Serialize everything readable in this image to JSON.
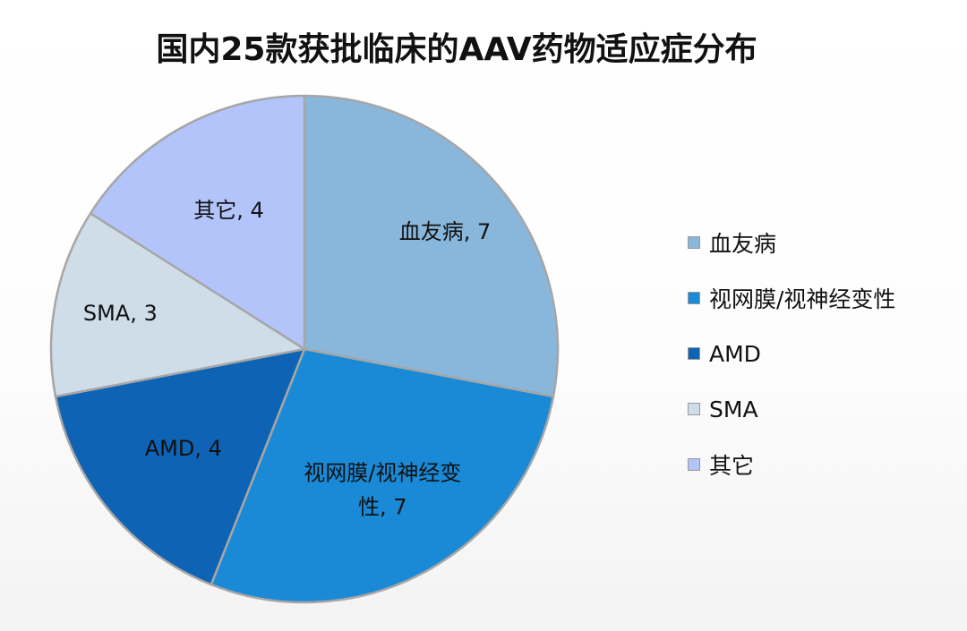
{
  "title": "国内25款获批临床的AAV药物适应症分布",
  "chart_data": {
    "type": "pie",
    "title": "国内25款获批临床的AAV药物适应症分布",
    "slices": [
      {
        "label": "血友病",
        "value": 7,
        "color": "#89b6db",
        "data_label": [
          "血友病, 7"
        ]
      },
      {
        "label": "视网膜/视神经变性",
        "value": 7,
        "color": "#1a8ad6",
        "data_label": [
          "视网膜/视神经变",
          "性, 7"
        ]
      },
      {
        "label": "AMD",
        "value": 4,
        "color": "#0f63b5",
        "data_label": [
          "AMD, 4"
        ]
      },
      {
        "label": "SMA",
        "value": 3,
        "color": "#cfdde8",
        "data_label": [
          "SMA, 3"
        ]
      },
      {
        "label": "其它",
        "value": 4,
        "color": "#b3c4fb",
        "data_label": [
          "其它, 4"
        ]
      }
    ],
    "legend": {
      "position": "right",
      "entries": [
        "血友病",
        "视网膜/视神经变性",
        "AMD",
        "SMA",
        "其它"
      ]
    },
    "border_color": "#a6a6a6"
  }
}
